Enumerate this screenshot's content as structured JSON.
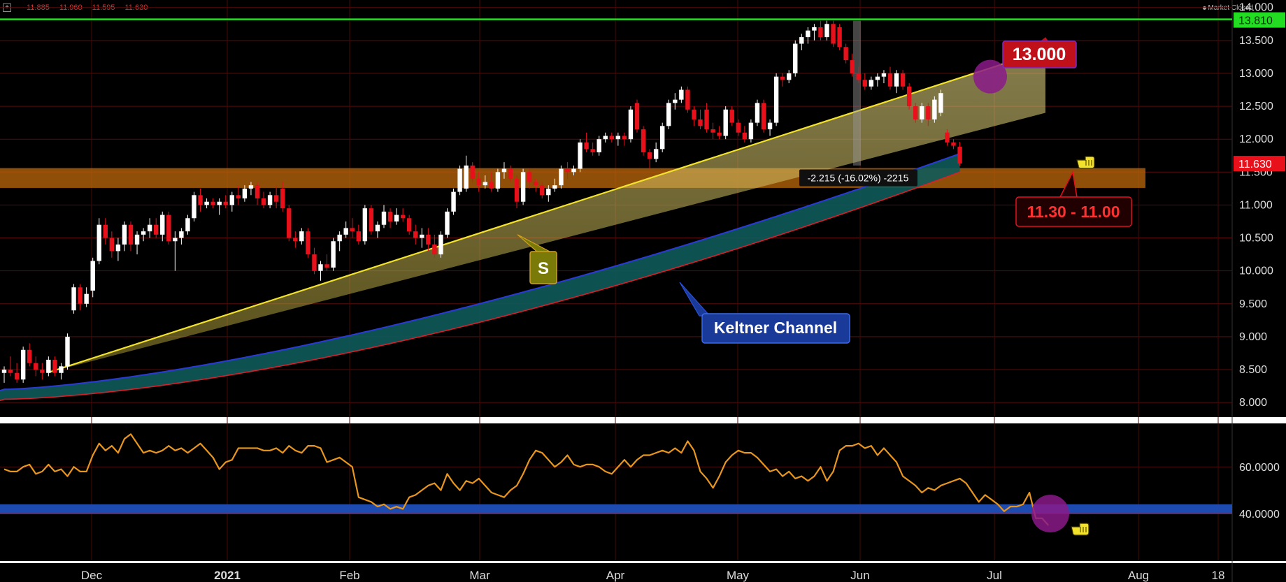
{
  "header": {
    "ohlc": [
      "11.885",
      "11.960",
      "11.595",
      "11.630"
    ],
    "market_status": "Market Closed",
    "expand_icon": "plus-box-icon"
  },
  "colors": {
    "background": "#000000",
    "bull": "#ffffff",
    "bear": "#e8101a",
    "resistance": "#22dd22",
    "support_zone": "#b8650a",
    "trendline": "#f2e22c",
    "keltner_upper": "#2a3ad8",
    "keltner_lower": "#d8202a",
    "keltner_fill": "#0f5a5a",
    "rsi": "#e8961e",
    "rsi_band": "#1f4fb8",
    "highlight_circle": "#8a1a8a",
    "callout_red": "#c0101a",
    "callout_olive": "#7a7a08",
    "callout_blue": "#1a3a9a"
  },
  "chart_data": [
    {
      "type": "candlestick",
      "ylim": [
        7.8,
        14.05
      ],
      "y_ticks": [
        "14.000",
        "13.500",
        "13.000",
        "12.500",
        "12.000",
        "11.500",
        "11.000",
        "10.500",
        "10.000",
        "9.500",
        "9.000",
        "8.500",
        "8.000"
      ],
      "x_ticks": [
        "Dec",
        "2021",
        "Feb",
        "Mar",
        "Apr",
        "May",
        "Jun",
        "Jul",
        "Aug",
        "18"
      ],
      "grid": true,
      "candles": [
        [
          8.45,
          8.55,
          8.3,
          8.5
        ],
        [
          8.5,
          8.7,
          8.4,
          8.45
        ],
        [
          8.45,
          8.6,
          8.3,
          8.35
        ],
        [
          8.35,
          8.85,
          8.3,
          8.8
        ],
        [
          8.8,
          8.9,
          8.55,
          8.6
        ],
        [
          8.6,
          8.7,
          8.4,
          8.5
        ],
        [
          8.5,
          8.6,
          8.35,
          8.45
        ],
        [
          8.45,
          8.7,
          8.4,
          8.65
        ],
        [
          8.65,
          8.7,
          8.4,
          8.45
        ],
        [
          8.45,
          8.6,
          8.35,
          8.55
        ],
        [
          8.55,
          9.05,
          8.5,
          9.0
        ],
        [
          9.4,
          9.8,
          9.35,
          9.75
        ],
        [
          9.75,
          9.8,
          9.4,
          9.5
        ],
        [
          9.5,
          9.75,
          9.45,
          9.65
        ],
        [
          9.7,
          10.2,
          9.6,
          10.15
        ],
        [
          10.15,
          10.8,
          10.1,
          10.7
        ],
        [
          10.7,
          10.8,
          10.4,
          10.5
        ],
        [
          10.5,
          10.6,
          10.2,
          10.3
        ],
        [
          10.3,
          10.5,
          10.15,
          10.4
        ],
        [
          10.4,
          10.75,
          10.3,
          10.7
        ],
        [
          10.7,
          10.75,
          10.3,
          10.4
        ],
        [
          10.4,
          10.6,
          10.25,
          10.55
        ],
        [
          10.55,
          10.65,
          10.45,
          10.6
        ],
        [
          10.6,
          10.8,
          10.5,
          10.7
        ],
        [
          10.7,
          10.8,
          10.5,
          10.55
        ],
        [
          10.55,
          10.9,
          10.45,
          10.85
        ],
        [
          10.85,
          10.9,
          10.4,
          10.45
        ],
        [
          10.45,
          10.6,
          10.0,
          10.5
        ],
        [
          10.5,
          10.65,
          10.4,
          10.6
        ],
        [
          10.6,
          10.85,
          10.55,
          10.8
        ],
        [
          10.8,
          11.2,
          10.75,
          11.15
        ],
        [
          11.15,
          11.25,
          10.9,
          11.0
        ],
        [
          11.0,
          11.1,
          10.95,
          11.05
        ],
        [
          11.05,
          11.1,
          10.95,
          11.0
        ],
        [
          11.0,
          11.1,
          10.85,
          11.05
        ],
        [
          11.05,
          11.15,
          10.95,
          11.0
        ],
        [
          11.0,
          11.2,
          10.9,
          11.15
        ],
        [
          11.15,
          11.3,
          11.0,
          11.1
        ],
        [
          11.1,
          11.3,
          11.05,
          11.25
        ],
        [
          11.25,
          11.35,
          11.15,
          11.3
        ],
        [
          11.3,
          11.35,
          11.0,
          11.1
        ],
        [
          11.1,
          11.2,
          10.95,
          11.0
        ],
        [
          11.0,
          11.2,
          10.95,
          11.15
        ],
        [
          11.15,
          11.3,
          10.95,
          11.05
        ],
        [
          11.25,
          11.35,
          10.9,
          10.95
        ],
        [
          10.95,
          11.0,
          10.45,
          10.5
        ],
        [
          10.5,
          10.6,
          10.35,
          10.45
        ],
        [
          10.45,
          10.65,
          10.4,
          10.6
        ],
        [
          10.6,
          10.65,
          10.2,
          10.25
        ],
        [
          10.25,
          10.35,
          9.95,
          10.0
        ],
        [
          10.0,
          10.15,
          9.85,
          10.1
        ],
        [
          10.1,
          10.25,
          10.0,
          10.05
        ],
        [
          10.05,
          10.5,
          10.0,
          10.45
        ],
        [
          10.45,
          10.6,
          10.3,
          10.55
        ],
        [
          10.55,
          10.75,
          10.5,
          10.65
        ],
        [
          10.65,
          10.8,
          10.5,
          10.6
        ],
        [
          10.6,
          10.7,
          10.4,
          10.45
        ],
        [
          10.45,
          11.0,
          10.4,
          10.95
        ],
        [
          10.95,
          11.0,
          10.55,
          10.6
        ],
        [
          10.6,
          10.75,
          10.5,
          10.7
        ],
        [
          10.7,
          11.0,
          10.65,
          10.9
        ],
        [
          10.9,
          10.95,
          10.65,
          10.75
        ],
        [
          10.75,
          10.95,
          10.7,
          10.85
        ],
        [
          10.85,
          10.95,
          10.75,
          10.8
        ],
        [
          10.8,
          10.85,
          10.55,
          10.6
        ],
        [
          10.6,
          10.7,
          10.4,
          10.5
        ],
        [
          10.5,
          10.65,
          10.35,
          10.55
        ],
        [
          10.55,
          10.65,
          10.3,
          10.4
        ],
        [
          10.4,
          10.55,
          10.2,
          10.25
        ],
        [
          10.25,
          10.6,
          10.2,
          10.55
        ],
        [
          10.55,
          10.95,
          10.5,
          10.9
        ],
        [
          10.9,
          11.25,
          10.85,
          11.2
        ],
        [
          11.2,
          11.6,
          11.15,
          11.55
        ],
        [
          11.25,
          11.75,
          11.2,
          11.6
        ],
        [
          11.6,
          11.65,
          11.35,
          11.4
        ],
        [
          11.4,
          11.5,
          11.2,
          11.3
        ],
        [
          11.3,
          11.45,
          11.25,
          11.35
        ],
        [
          11.35,
          11.5,
          11.2,
          11.25
        ],
        [
          11.25,
          11.55,
          11.2,
          11.5
        ],
        [
          11.5,
          11.65,
          11.4,
          11.55
        ],
        [
          11.55,
          11.6,
          11.35,
          11.4
        ],
        [
          11.4,
          11.45,
          10.95,
          11.05
        ],
        [
          11.05,
          11.55,
          11.0,
          11.5
        ],
        [
          11.5,
          11.55,
          11.25,
          11.35
        ],
        [
          11.35,
          11.4,
          11.2,
          11.3
        ],
        [
          11.3,
          11.35,
          11.1,
          11.15
        ],
        [
          11.15,
          11.3,
          11.05,
          11.25
        ],
        [
          11.25,
          11.4,
          11.2,
          11.3
        ],
        [
          11.3,
          11.6,
          11.25,
          11.55
        ],
        [
          11.55,
          11.65,
          11.4,
          11.5
        ],
        [
          11.5,
          11.6,
          11.45,
          11.55
        ],
        [
          11.55,
          12.0,
          11.5,
          11.95
        ],
        [
          11.95,
          12.1,
          11.8,
          11.85
        ],
        [
          11.85,
          11.95,
          11.75,
          11.8
        ],
        [
          11.8,
          12.05,
          11.75,
          12.0
        ],
        [
          12.0,
          12.1,
          11.95,
          12.05
        ],
        [
          12.05,
          12.1,
          11.95,
          12.0
        ],
        [
          12.0,
          12.1,
          11.9,
          12.05
        ],
        [
          12.05,
          12.1,
          11.9,
          12.0
        ],
        [
          12.0,
          12.5,
          11.95,
          12.45
        ],
        [
          12.55,
          12.6,
          12.1,
          12.15
        ],
        [
          12.15,
          12.2,
          11.75,
          11.8
        ],
        [
          11.8,
          11.85,
          11.55,
          11.7
        ],
        [
          11.7,
          11.95,
          11.65,
          11.85
        ],
        [
          11.85,
          12.25,
          11.8,
          12.2
        ],
        [
          12.2,
          12.6,
          12.15,
          12.55
        ],
        [
          12.55,
          12.7,
          12.45,
          12.6
        ],
        [
          12.6,
          12.8,
          12.55,
          12.75
        ],
        [
          12.75,
          12.8,
          12.4,
          12.45
        ],
        [
          12.45,
          12.5,
          12.2,
          12.3
        ],
        [
          12.3,
          12.45,
          12.15,
          12.2
        ],
        [
          12.45,
          12.55,
          12.1,
          12.15
        ],
        [
          12.15,
          12.25,
          12.0,
          12.1
        ],
        [
          12.1,
          12.2,
          12.0,
          12.05
        ],
        [
          12.05,
          12.5,
          12.0,
          12.45
        ],
        [
          12.45,
          12.5,
          12.2,
          12.25
        ],
        [
          12.25,
          12.3,
          12.05,
          12.1
        ],
        [
          12.1,
          12.2,
          11.95,
          12.0
        ],
        [
          12.0,
          12.3,
          11.95,
          12.25
        ],
        [
          12.25,
          12.6,
          12.2,
          12.55
        ],
        [
          12.55,
          12.6,
          12.1,
          12.15
        ],
        [
          12.15,
          12.3,
          12.05,
          12.25
        ],
        [
          12.25,
          13.0,
          12.2,
          12.95
        ],
        [
          12.95,
          13.0,
          12.8,
          12.9
        ],
        [
          12.9,
          13.05,
          12.85,
          13.0
        ],
        [
          13.0,
          13.5,
          12.95,
          13.45
        ],
        [
          13.45,
          13.6,
          13.35,
          13.55
        ],
        [
          13.55,
          13.7,
          13.45,
          13.65
        ],
        [
          13.65,
          13.75,
          13.5,
          13.7
        ],
        [
          13.7,
          13.8,
          13.5,
          13.55
        ],
        [
          13.55,
          13.8,
          13.5,
          13.75
        ],
        [
          13.75,
          13.8,
          13.4,
          13.45
        ],
        [
          13.7,
          13.75,
          13.35,
          13.4
        ],
        [
          13.4,
          13.45,
          13.15,
          13.2
        ],
        [
          13.2,
          13.3,
          12.95,
          13.0
        ],
        [
          13.0,
          13.1,
          12.85,
          12.9
        ],
        [
          12.9,
          13.0,
          12.75,
          12.8
        ],
        [
          12.8,
          12.95,
          12.75,
          12.9
        ],
        [
          12.9,
          13.0,
          12.8,
          12.95
        ],
        [
          12.95,
          13.05,
          12.85,
          13.0
        ],
        [
          13.0,
          13.1,
          12.75,
          12.8
        ],
        [
          12.8,
          13.05,
          12.7,
          13.0
        ],
        [
          13.0,
          13.05,
          12.75,
          12.8
        ],
        [
          12.8,
          12.85,
          12.45,
          12.5
        ],
        [
          12.5,
          12.55,
          12.25,
          12.3
        ],
        [
          12.3,
          12.55,
          12.25,
          12.5
        ],
        [
          12.5,
          12.55,
          12.2,
          12.3
        ],
        [
          12.3,
          12.65,
          12.25,
          12.6
        ],
        [
          12.4,
          12.75,
          12.35,
          12.7
        ],
        [
          12.1,
          12.15,
          11.9,
          11.95
        ],
        [
          11.95,
          12.0,
          11.85,
          11.9
        ],
        [
          11.885,
          11.96,
          11.595,
          11.63
        ]
      ],
      "last_price": "11.630",
      "resistance_price": "13.810",
      "range_annotation": "-2.215 (-16.02%) -2215"
    },
    {
      "type": "line",
      "name": "",
      "ylim": [
        20,
        78
      ],
      "y_ticks": [
        "60.0000",
        "40.0000"
      ],
      "band": [
        40,
        44
      ],
      "values": [
        59,
        58,
        58,
        60,
        61,
        57,
        58,
        61,
        58,
        59,
        56,
        60,
        58,
        58,
        65,
        70,
        67,
        69,
        66,
        72,
        74,
        70,
        66,
        67,
        66,
        67,
        69,
        67,
        68,
        66,
        68,
        70,
        67,
        64,
        59,
        62,
        63,
        68,
        68,
        68,
        68,
        67,
        67,
        68,
        66,
        69,
        67,
        66,
        69,
        69,
        68,
        62,
        63,
        64,
        62,
        60,
        47,
        46,
        45,
        43,
        44,
        42,
        43,
        42,
        47,
        48,
        50,
        52,
        53,
        50,
        57,
        53,
        50,
        54,
        53,
        55,
        52,
        49,
        48,
        47,
        50,
        52,
        57,
        63,
        67,
        66,
        63,
        60,
        62,
        65,
        61,
        60,
        61,
        61,
        60,
        58,
        57,
        60,
        63,
        60,
        63,
        65,
        65,
        66,
        67,
        66,
        68,
        66,
        71,
        67,
        58,
        55,
        51,
        56,
        62,
        65,
        67,
        66,
        66,
        64,
        61,
        58,
        59,
        56,
        58,
        55,
        56,
        54,
        56,
        60,
        54,
        58,
        67,
        69,
        69,
        70,
        68,
        69,
        65,
        68,
        65,
        62,
        56,
        54,
        52,
        49,
        51,
        50,
        52,
        53,
        54,
        55,
        53,
        49,
        45,
        48,
        46,
        44,
        41,
        43,
        43,
        44,
        49,
        38,
        38,
        35
      ]
    }
  ],
  "annotations": {
    "target_label": "13.000",
    "support_zone_label": "11.30 - 11.00",
    "support_marker": "S",
    "channel_label": "Keltner Channel"
  }
}
